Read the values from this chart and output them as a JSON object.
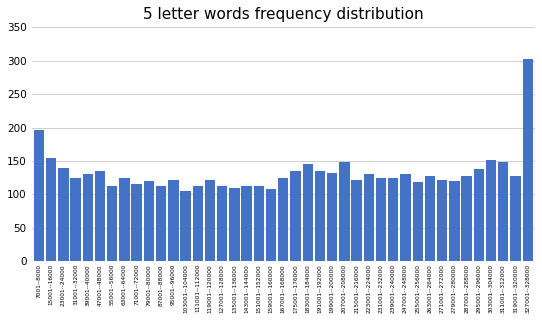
{
  "title": "5 letter words frequency distribution",
  "bar_color": "#4472C4",
  "ylim": [
    0,
    350
  ],
  "yticks": [
    0,
    50,
    100,
    150,
    200,
    250,
    300,
    350
  ],
  "categories": [
    "7001--8000",
    "15001--16000",
    "23001--24000",
    "31001--32000",
    "39001--40000",
    "47001--48000",
    "55001--56000",
    "63001--64000",
    "71001--72000",
    "79001--80000",
    "87001--88000",
    "95001--96000",
    "103001--104000",
    "111001--112000",
    "119001--120000",
    "127001--128000",
    "135001--136000",
    "143001--144000",
    "151001--152000",
    "159001--160000",
    "167001--168000",
    "175001--176000",
    "183001--184000",
    "191001--192000",
    "199001--200000",
    "207001--208000",
    "215001--216000",
    "223001--224000",
    "231001--232000",
    "239001--240000",
    "247001--248000",
    "255001--256000",
    "263001--264000",
    "271001--272000",
    "279001--280000",
    "287001--288000",
    "295001--296000",
    "303001--304000",
    "311001--312000",
    "319001--320000",
    "327001--328000"
  ],
  "values": [
    197,
    155,
    140,
    125,
    130,
    135,
    112,
    125,
    115,
    120,
    113,
    122,
    105,
    113,
    122,
    113,
    110,
    112,
    113,
    108,
    125,
    135,
    145,
    135,
    132,
    148,
    122,
    130,
    125,
    125,
    130,
    118,
    128,
    122,
    120,
    128,
    138,
    152,
    148,
    128,
    303
  ],
  "background_color": "#ffffff",
  "grid_color": "#d0d0d0",
  "title_fontsize": 11
}
